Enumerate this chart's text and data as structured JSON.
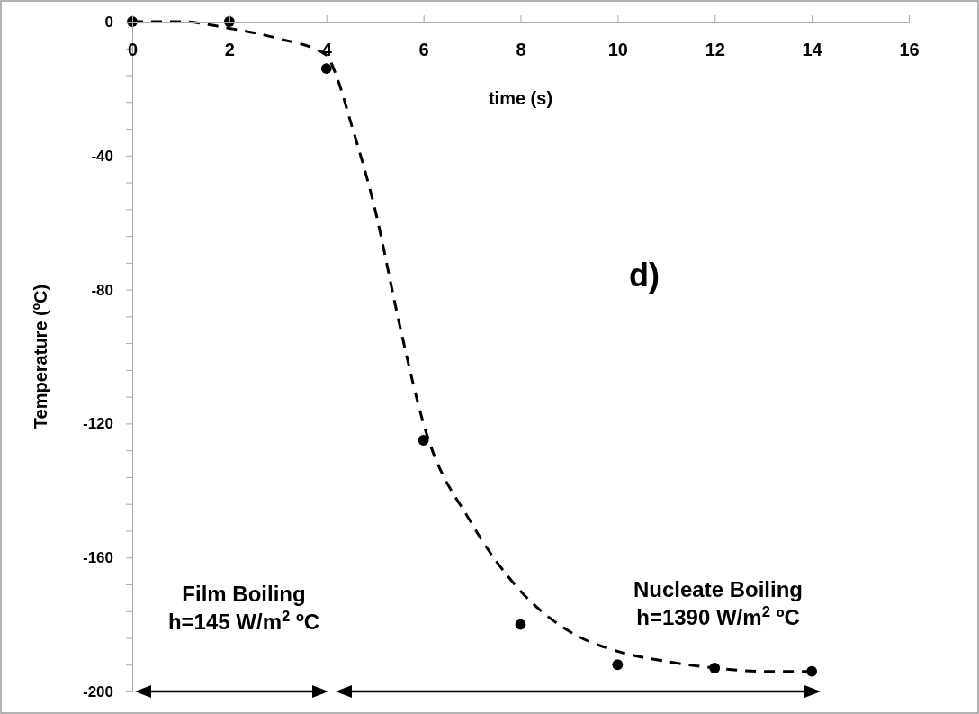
{
  "chart_data": {
    "type": "scatter",
    "xlabel": "time (s)",
    "ylabel": "Temperature (ºC)",
    "xlim": [
      0,
      16
    ],
    "xticks": [
      0,
      2,
      4,
      6,
      8,
      10,
      12,
      14,
      16
    ],
    "ylim": [
      -200,
      0
    ],
    "yticks": [
      -200,
      {
        "value": -192,
        "label": null
      },
      {
        "value": -184,
        "label": null
      },
      {
        "value": -176,
        "label": null
      },
      {
        "value": -168,
        "label": null
      },
      -160,
      {
        "value": -152,
        "label": null
      },
      {
        "value": -144,
        "label": null
      },
      {
        "value": -136,
        "label": null
      },
      {
        "value": -128,
        "label": null
      },
      -120,
      {
        "value": -112,
        "label": null
      },
      {
        "value": -104,
        "label": null
      },
      {
        "value": -96,
        "label": null
      },
      {
        "value": -88,
        "label": null
      },
      -80,
      {
        "value": -72,
        "label": null
      },
      {
        "value": -64,
        "label": null
      },
      {
        "value": -56,
        "label": null
      },
      {
        "value": -48,
        "label": null
      },
      -40,
      {
        "value": -32,
        "label": null
      },
      {
        "value": -24,
        "label": null
      },
      {
        "value": -16,
        "label": null
      },
      {
        "value": -8,
        "label": null
      },
      0
    ],
    "marker": "circle",
    "series": [
      {
        "color": "#000000",
        "x": [
          0,
          2,
          4,
          6,
          8,
          10,
          12,
          14
        ],
        "values": [
          0,
          0,
          -14,
          -125,
          -180,
          -192,
          -193,
          -194
        ]
      },
      {
        "type": "line",
        "color": "#000000",
        "line_style": "dashed",
        "marker": "none",
        "x": [
          0,
          1,
          2,
          3,
          4,
          4.2,
          4.5,
          5,
          5.5,
          6,
          7,
          8,
          9,
          10,
          11,
          12,
          13,
          14
        ],
        "values": [
          0,
          0,
          -2,
          -5,
          -10,
          -16,
          -30,
          -56,
          -90,
          -120,
          -150,
          -170,
          -182,
          -188,
          -191,
          -193,
          -194,
          -194
        ]
      }
    ],
    "annotations": [
      "Film Boiling\nh=145 W/m$^{2}$ ºC",
      "Nucleate Boiling\nh=1390 W/m$^{2}$ ºC",
      "d)"
    ]
  }
}
